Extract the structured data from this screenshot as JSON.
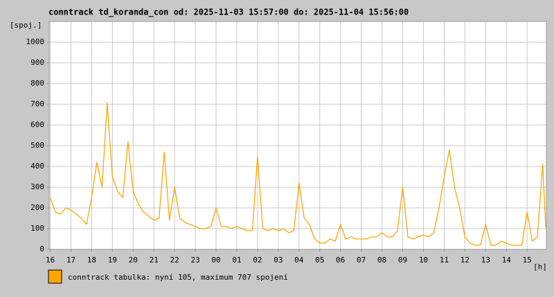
{
  "chart_data": {
    "type": "line",
    "title": "conntrack td_koranda_con od: 2025-11-03 15:57:00 do: 2025-11-04 15:56:00",
    "y_label": "[spoj.]",
    "x_label": "[h]",
    "x": [
      16,
      16.25,
      16.5,
      16.75,
      17,
      17.25,
      17.5,
      17.75,
      18,
      18.25,
      18.5,
      18.75,
      19,
      19.25,
      19.5,
      19.75,
      20,
      20.25,
      20.5,
      20.75,
      21,
      21.25,
      21.5,
      21.75,
      22,
      22.25,
      22.5,
      22.75,
      23,
      23.25,
      23.5,
      23.75,
      24,
      24.25,
      24.5,
      24.75,
      25,
      25.25,
      25.5,
      25.75,
      26,
      26.25,
      26.5,
      26.75,
      27,
      27.25,
      27.5,
      27.75,
      28,
      28.25,
      28.5,
      28.75,
      29,
      29.25,
      29.5,
      29.75,
      30,
      30.25,
      30.5,
      30.75,
      31,
      31.25,
      31.5,
      31.75,
      32,
      32.25,
      32.5,
      32.75,
      33,
      33.25,
      33.5,
      33.75,
      34,
      34.25,
      34.5,
      34.75,
      35,
      35.25,
      35.5,
      35.75,
      36,
      36.25,
      36.5,
      36.75,
      37,
      37.25,
      37.5,
      37.75,
      38,
      38.25,
      38.5,
      38.75,
      39,
      39.25,
      39.5,
      39.75,
      39.9
    ],
    "series": [
      {
        "name": "conntrack tabulka: nyní 105, maximum 707 spojení",
        "color": "#ffa500",
        "values": [
          250,
          180,
          170,
          200,
          190,
          170,
          150,
          120,
          250,
          420,
          300,
          707,
          350,
          280,
          250,
          520,
          280,
          220,
          180,
          160,
          140,
          150,
          470,
          140,
          300,
          150,
          130,
          120,
          110,
          100,
          100,
          110,
          200,
          110,
          110,
          100,
          110,
          100,
          90,
          90,
          450,
          100,
          90,
          100,
          90,
          100,
          80,
          90,
          320,
          150,
          120,
          50,
          30,
          30,
          50,
          40,
          120,
          50,
          60,
          50,
          50,
          50,
          60,
          60,
          80,
          60,
          60,
          90,
          300,
          60,
          50,
          60,
          70,
          60,
          80,
          200,
          350,
          480,
          300,
          200,
          60,
          30,
          20,
          20,
          120,
          20,
          20,
          40,
          30,
          20,
          20,
          20,
          180,
          40,
          60,
          410,
          105
        ]
      }
    ],
    "xlim": [
      15.95,
      39.93
    ],
    "ylim": [
      0,
      1100
    ],
    "xticks": [
      16,
      17,
      18,
      19,
      20,
      21,
      22,
      23,
      {
        "value": 24,
        "label": "00"
      },
      {
        "value": 25,
        "label": "01"
      },
      {
        "value": 26,
        "label": "02"
      },
      {
        "value": 27,
        "label": "03"
      },
      {
        "value": 28,
        "label": "04"
      },
      {
        "value": 29,
        "label": "05"
      },
      {
        "value": 30,
        "label": "06"
      },
      {
        "value": 31,
        "label": "07"
      },
      {
        "value": 32,
        "label": "08"
      },
      {
        "value": 33,
        "label": "09"
      },
      {
        "value": 34,
        "label": "10"
      },
      {
        "value": 35,
        "label": "11"
      },
      {
        "value": 36,
        "label": "12"
      },
      {
        "value": 37,
        "label": "13"
      },
      {
        "value": 38,
        "label": "14"
      },
      {
        "value": 39,
        "label": "15"
      }
    ],
    "yticks": [
      0,
      100,
      200,
      300,
      400,
      500,
      600,
      700,
      800,
      900,
      1000
    ],
    "grid": true
  }
}
